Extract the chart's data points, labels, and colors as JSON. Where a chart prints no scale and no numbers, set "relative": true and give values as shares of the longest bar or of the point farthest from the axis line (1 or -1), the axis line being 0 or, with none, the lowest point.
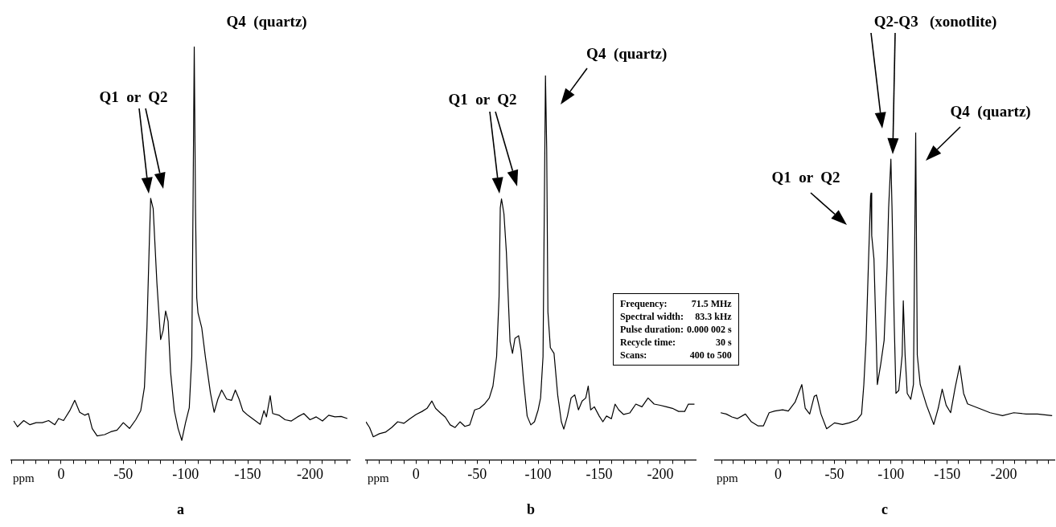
{
  "chart_data": [
    {
      "type": "line",
      "title": "a",
      "xlabel": "ppm",
      "relative": true,
      "color": "#000000",
      "xlim": [
        40,
        -232
      ],
      "xticks": [
        {
          "value": 40,
          "label": null
        },
        {
          "value": 30,
          "label": null
        },
        {
          "value": 20,
          "label": null
        },
        {
          "value": 10,
          "label": null
        },
        0,
        {
          "value": -10,
          "label": null
        },
        {
          "value": -20,
          "label": null
        },
        {
          "value": -30,
          "label": null
        },
        {
          "value": -40,
          "label": null
        },
        -50,
        {
          "value": -60,
          "label": null
        },
        {
          "value": -70,
          "label": null
        },
        {
          "value": -80,
          "label": null
        },
        {
          "value": -90,
          "label": null
        },
        -100,
        {
          "value": -110,
          "label": null
        },
        {
          "value": -120,
          "label": null
        },
        {
          "value": -130,
          "label": null
        },
        {
          "value": -140,
          "label": null
        },
        -150,
        {
          "value": -160,
          "label": null
        },
        {
          "value": -170,
          "label": null
        },
        {
          "value": -180,
          "label": null
        },
        {
          "value": -190,
          "label": null
        },
        -200,
        {
          "value": -210,
          "label": null
        },
        {
          "value": -220,
          "label": null
        },
        {
          "value": -230,
          "label": null
        }
      ],
      "x": [
        38,
        35,
        30,
        25,
        20,
        15,
        10,
        5,
        2,
        -2,
        -7,
        -11,
        -15,
        -19,
        -22,
        -25,
        -29,
        -35,
        -40,
        -45,
        -50,
        -55,
        -60,
        -64,
        -67,
        -69,
        -71,
        -72,
        -74,
        -77,
        -80,
        -82,
        -84,
        -86,
        -88,
        -91,
        -94,
        -97,
        -100,
        -103,
        -105,
        -106,
        -107,
        -108,
        -109,
        -110,
        -113,
        -116,
        -120,
        -123,
        -126,
        -129,
        -133,
        -137,
        -140,
        -143,
        -146,
        -150,
        -155,
        -160,
        -163,
        -165,
        -168,
        -170,
        -175,
        -180,
        -185,
        -190,
        -195,
        -200,
        -205,
        -210,
        -215,
        -220,
        -225,
        -230
      ],
      "values": [
        0.094,
        0.08,
        0.095,
        0.085,
        0.09,
        0.09,
        0.095,
        0.085,
        0.1,
        0.095,
        0.119,
        0.144,
        0.115,
        0.108,
        0.112,
        0.076,
        0.058,
        0.061,
        0.068,
        0.072,
        0.09,
        0.076,
        0.097,
        0.119,
        0.176,
        0.32,
        0.536,
        0.633,
        0.608,
        0.428,
        0.291,
        0.313,
        0.36,
        0.335,
        0.212,
        0.119,
        0.076,
        0.047,
        0.09,
        0.126,
        0.248,
        0.608,
        1.0,
        0.608,
        0.392,
        0.356,
        0.32,
        0.248,
        0.162,
        0.115,
        0.147,
        0.169,
        0.147,
        0.144,
        0.169,
        0.147,
        0.119,
        0.108,
        0.097,
        0.086,
        0.119,
        0.104,
        0.155,
        0.112,
        0.108,
        0.097,
        0.094,
        0.104,
        0.112,
        0.097,
        0.104,
        0.094,
        0.108,
        0.104,
        0.105,
        0.1
      ],
      "annotations": [
        "Q1  or  Q2",
        {
          "text": "Q4  (quartz)",
          "x": -107,
          "y": 1.0
        }
      ]
    },
    {
      "type": "line",
      "title": "b",
      "xlabel": "ppm",
      "relative": true,
      "color": "#000000",
      "xlim": [
        41,
        -229
      ],
      "xticks": [
        {
          "value": 40,
          "label": null
        },
        {
          "value": 30,
          "label": null
        },
        {
          "value": 20,
          "label": null
        },
        {
          "value": 10,
          "label": null
        },
        0,
        {
          "value": -10,
          "label": null
        },
        {
          "value": -20,
          "label": null
        },
        {
          "value": -30,
          "label": null
        },
        {
          "value": -40,
          "label": null
        },
        -50,
        {
          "value": -60,
          "label": null
        },
        {
          "value": -70,
          "label": null
        },
        {
          "value": -80,
          "label": null
        },
        {
          "value": -90,
          "label": null
        },
        -100,
        {
          "value": -110,
          "label": null
        },
        {
          "value": -120,
          "label": null
        },
        {
          "value": -130,
          "label": null
        },
        {
          "value": -140,
          "label": null
        },
        -150,
        {
          "value": -160,
          "label": null
        },
        {
          "value": -170,
          "label": null
        },
        {
          "value": -180,
          "label": null
        },
        {
          "value": -190,
          "label": null
        },
        -200,
        {
          "value": -210,
          "label": null
        },
        {
          "value": -220,
          "label": null
        }
      ],
      "x": [
        41,
        38,
        35,
        30,
        25,
        20,
        15,
        10,
        5,
        0,
        -5,
        -9,
        -13,
        -16,
        -20,
        -24,
        -28,
        -32,
        -36,
        -40,
        -44,
        -48,
        -52,
        -56,
        -60,
        -63,
        -66,
        -68,
        -69,
        -70,
        -72,
        -74,
        -77,
        -79,
        -81,
        -84,
        -86,
        -88,
        -91,
        -94,
        -97,
        -100,
        -102,
        -104,
        -106,
        -107,
        -108,
        -110,
        -113,
        -116,
        -119,
        -121,
        -124,
        -127,
        -130,
        -133,
        -136,
        -139,
        -141,
        -143,
        -146,
        -150,
        -153,
        -156,
        -160,
        -163,
        -166,
        -170,
        -175,
        -180,
        -185,
        -190,
        -195,
        -200,
        -205,
        -210,
        -215,
        -220,
        -223,
        -228
      ],
      "values": [
        0.099,
        0.084,
        0.06,
        0.068,
        0.072,
        0.084,
        0.099,
        0.095,
        0.107,
        0.118,
        0.126,
        0.134,
        0.153,
        0.134,
        0.122,
        0.111,
        0.091,
        0.084,
        0.099,
        0.087,
        0.091,
        0.13,
        0.134,
        0.145,
        0.161,
        0.192,
        0.269,
        0.424,
        0.656,
        0.679,
        0.64,
        0.54,
        0.308,
        0.277,
        0.316,
        0.323,
        0.285,
        0.207,
        0.114,
        0.091,
        0.099,
        0.13,
        0.161,
        0.269,
        1.0,
        0.811,
        0.385,
        0.292,
        0.277,
        0.169,
        0.099,
        0.08,
        0.114,
        0.161,
        0.169,
        0.13,
        0.153,
        0.161,
        0.192,
        0.13,
        0.138,
        0.114,
        0.099,
        0.114,
        0.107,
        0.145,
        0.13,
        0.118,
        0.122,
        0.145,
        0.138,
        0.161,
        0.145,
        0.142,
        0.138,
        0.134,
        0.126,
        0.126,
        0.145,
        0.145
      ],
      "annotations": [
        "Q1  or  Q2",
        {
          "text": "Q4  (quartz)",
          "x": -106,
          "y": 1.0
        }
      ]
    },
    {
      "type": "line",
      "title": "c",
      "xlabel": "ppm",
      "relative": true,
      "color": "#000000",
      "xlim": [
        56,
        -245
      ],
      "xticks": [
        {
          "value": 50,
          "label": null
        },
        {
          "value": 40,
          "label": null
        },
        {
          "value": 30,
          "label": null
        },
        {
          "value": 20,
          "label": null
        },
        {
          "value": 10,
          "label": null
        },
        0,
        {
          "value": -10,
          "label": null
        },
        {
          "value": -20,
          "label": null
        },
        {
          "value": -30,
          "label": null
        },
        {
          "value": -40,
          "label": null
        },
        -50,
        {
          "value": -60,
          "label": null
        },
        {
          "value": -70,
          "label": null
        },
        {
          "value": -80,
          "label": null
        },
        {
          "value": -90,
          "label": null
        },
        -100,
        {
          "value": -110,
          "label": null
        },
        {
          "value": -120,
          "label": null
        },
        {
          "value": -130,
          "label": null
        },
        {
          "value": -140,
          "label": null
        },
        -150,
        {
          "value": -160,
          "label": null
        },
        {
          "value": -170,
          "label": null
        },
        {
          "value": -180,
          "label": null
        },
        {
          "value": -190,
          "label": null
        },
        -200,
        {
          "value": -210,
          "label": null
        },
        {
          "value": -220,
          "label": null
        },
        {
          "value": -230,
          "label": null
        },
        {
          "value": -240,
          "label": null
        }
      ],
      "x": [
        51,
        46,
        41,
        36,
        29,
        24,
        18,
        13,
        8,
        3,
        -4,
        -9,
        -15,
        -18,
        -21,
        -24,
        -28,
        -32,
        -34,
        -38,
        -43,
        -50,
        -57,
        -63,
        -70,
        -74,
        -76,
        -78,
        -80,
        -82,
        -82.4,
        -83,
        -85,
        -87,
        -88,
        -91,
        -94,
        -96.6,
        -98,
        -100,
        -101,
        -103,
        -104.5,
        -107,
        -110,
        -111,
        -112.6,
        -114.5,
        -117.6,
        -120,
        -122,
        -123.4,
        -126,
        -131.6,
        -138,
        -142,
        -145.5,
        -149,
        -153,
        -157,
        -161,
        -164.5,
        -168,
        -177.6,
        -188,
        -199,
        -209,
        -220,
        -230,
        -243
      ],
      "values": [
        0.144,
        0.14,
        0.131,
        0.126,
        0.14,
        0.117,
        0.104,
        0.104,
        0.144,
        0.149,
        0.153,
        0.149,
        0.176,
        0.203,
        0.23,
        0.158,
        0.14,
        0.194,
        0.198,
        0.14,
        0.095,
        0.113,
        0.108,
        0.113,
        0.122,
        0.14,
        0.23,
        0.365,
        0.59,
        0.806,
        0.815,
        0.685,
        0.613,
        0.365,
        0.23,
        0.293,
        0.365,
        0.59,
        0.77,
        0.919,
        0.77,
        0.41,
        0.203,
        0.212,
        0.32,
        0.486,
        0.32,
        0.203,
        0.185,
        0.23,
        1.0,
        0.32,
        0.23,
        0.167,
        0.108,
        0.158,
        0.216,
        0.167,
        0.144,
        0.221,
        0.288,
        0.203,
        0.171,
        0.158,
        0.144,
        0.135,
        0.144,
        0.14,
        0.14,
        0.135
      ],
      "annotations": [
        {
          "text": "Q1  or  Q2",
          "x": -82.4,
          "y": 0.815
        },
        "Q2-Q3   (xonotlite)",
        {
          "text": "Q4  (quartz)",
          "x": -122,
          "y": 1.0
        }
      ]
    },
    {
      "type": "other",
      "annotations": [
        "Frequency:",
        "71.5 MHz",
        "Spectral width:",
        "83.3 kHz",
        "Pulse duration:",
        "0.000 002 s",
        "Recycle time:",
        "30 s",
        "Scans:",
        "400 to 500"
      ]
    }
  ]
}
